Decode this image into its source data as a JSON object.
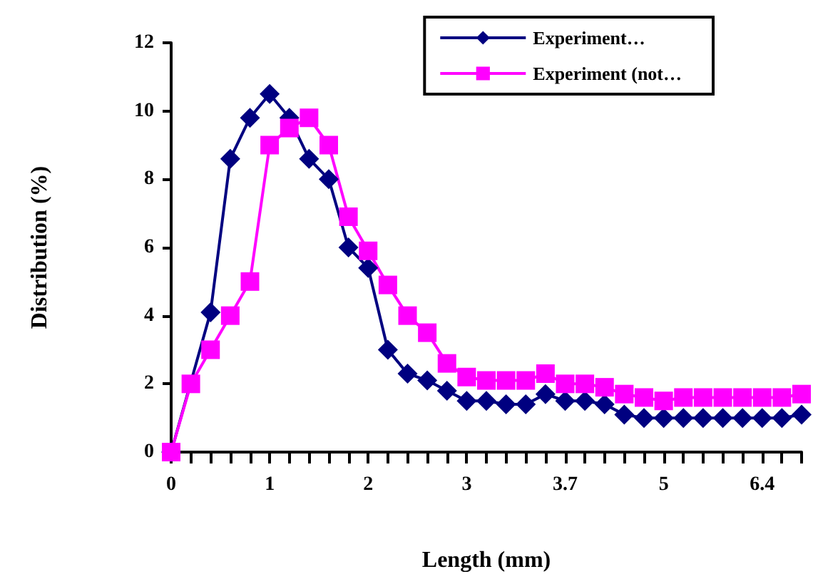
{
  "chart_data": {
    "type": "line",
    "xlabel": "Length (mm)",
    "ylabel": "Distribution (%)",
    "categories": [
      "0",
      null,
      null,
      null,
      null,
      "1",
      null,
      null,
      null,
      null,
      "2",
      null,
      null,
      null,
      null,
      "3",
      null,
      null,
      null,
      null,
      "3.7",
      null,
      null,
      null,
      null,
      "5",
      null,
      null,
      null,
      null,
      "6.4",
      null,
      null
    ],
    "series": [
      {
        "name": "Experiment…",
        "color": "#000080",
        "marker": "diamond",
        "values": [
          0,
          null,
          4.1,
          8.6,
          9.8,
          10.5,
          9.8,
          8.6,
          8.0,
          6.0,
          5.4,
          3.0,
          2.3,
          2.1,
          1.8,
          1.5,
          1.5,
          1.4,
          1.4,
          1.7,
          1.5,
          1.5,
          1.4,
          1.1,
          1.0,
          1.0,
          1.0,
          1.0,
          1.0,
          1.0,
          1.0,
          1.0,
          1.1
        ]
      },
      {
        "name": "Experiment (not…",
        "color": "#ff00ff",
        "marker": "square",
        "values": [
          0,
          2.0,
          3.0,
          4.0,
          5.0,
          9.0,
          9.5,
          9.8,
          9.0,
          6.9,
          5.9,
          4.9,
          4.0,
          3.5,
          2.6,
          2.2,
          2.1,
          2.1,
          2.1,
          2.3,
          2.0,
          2.0,
          1.9,
          1.7,
          1.6,
          1.5,
          1.6,
          1.6,
          1.6,
          1.6,
          1.6,
          1.6,
          1.7
        ]
      }
    ],
    "ylim": [
      0,
      12
    ],
    "yticks": [
      0,
      2,
      4,
      6,
      8,
      10,
      12
    ],
    "grid": false,
    "legend": "top right"
  }
}
